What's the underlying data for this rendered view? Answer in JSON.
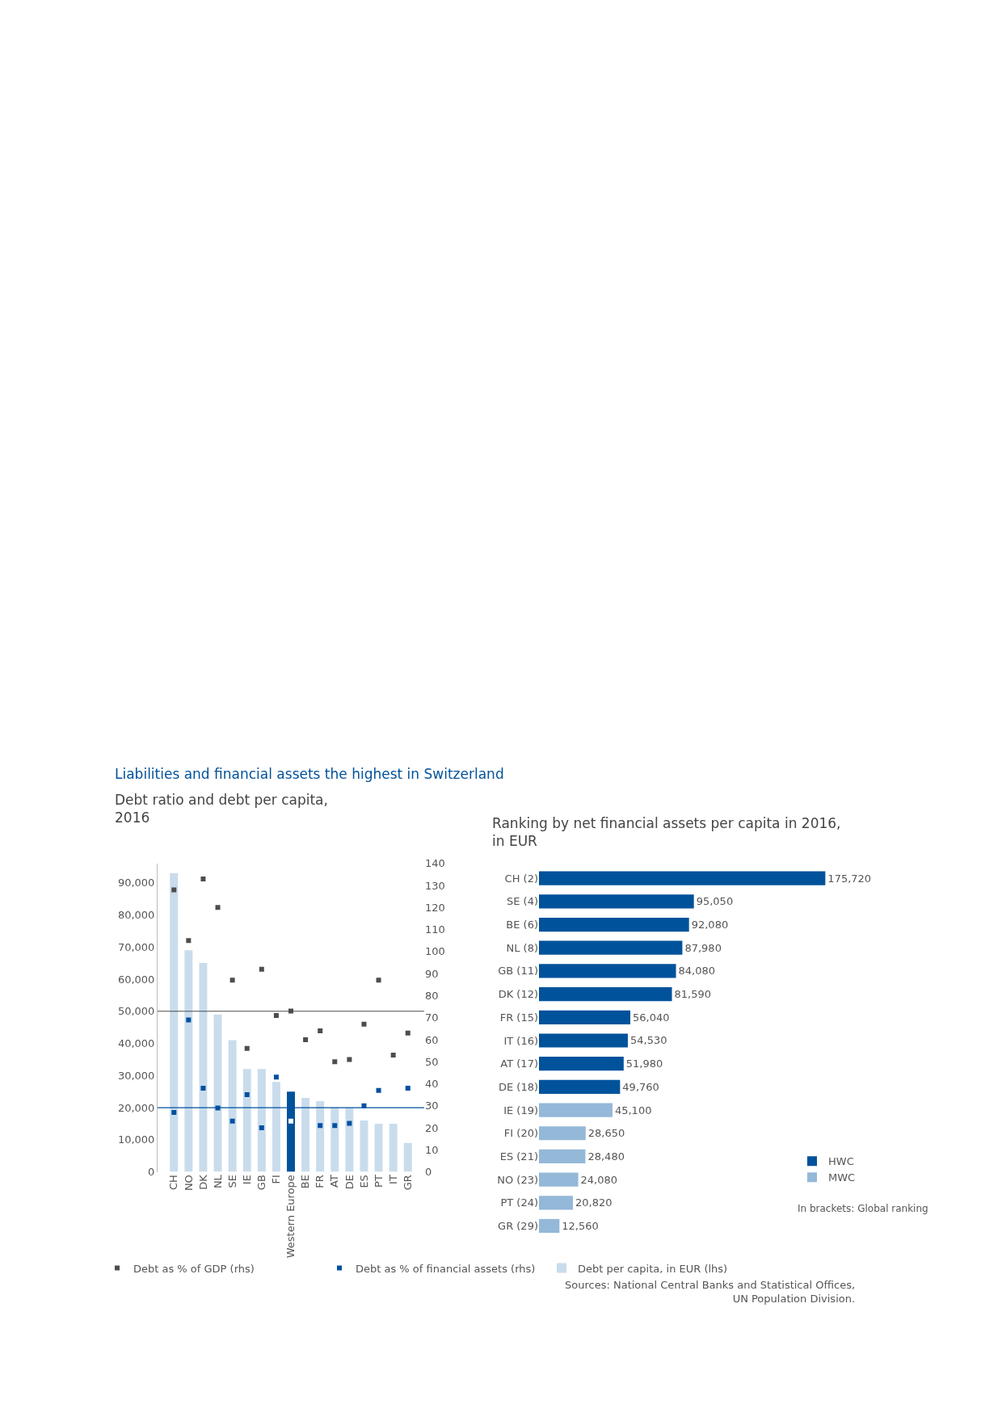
{
  "chart_data": [
    {
      "type": "bar",
      "title": "Liabilities and financial assets the highest in Switzerland",
      "subtitle": "Debt ratio and debt per capita, 2016",
      "categories": [
        "CH",
        "NO",
        "DK",
        "NL",
        "SE",
        "IE",
        "GB",
        "FI",
        "Western Europe",
        "BE",
        "FR",
        "AT",
        "DE",
        "ES",
        "PT",
        "IT",
        "GR"
      ],
      "series": [
        {
          "name": "Debt per capita, in EUR (lhs)",
          "type": "bar",
          "color": "#c9dcec",
          "colors": [
            "#c9dcec",
            "#c9dcec",
            "#c9dcec",
            "#c9dcec",
            "#c9dcec",
            "#c9dcec",
            "#c9dcec",
            "#c9dcec",
            "#00529b",
            "#c9dcec",
            "#c9dcec",
            "#c9dcec",
            "#c9dcec",
            "#c9dcec",
            "#c9dcec",
            "#c9dcec",
            "#c9dcec"
          ],
          "values": [
            93000,
            69000,
            65000,
            49000,
            41000,
            32000,
            32000,
            28000,
            25000,
            23000,
            22000,
            20000,
            20000,
            16000,
            15000,
            15000,
            9000
          ]
        },
        {
          "name": "Debt as % of GDP (rhs)",
          "type": "scatter",
          "axis": "y2",
          "color": "#4d4d4d",
          "values": [
            128,
            105,
            133,
            120,
            87,
            56,
            92,
            71,
            73,
            60,
            64,
            50,
            51,
            67,
            87,
            53,
            63
          ]
        },
        {
          "name": "Debt as % of financial assets (rhs)",
          "type": "scatter",
          "axis": "y2",
          "color": "#0050a0",
          "colors": [
            "#0050a0",
            "#0050a0",
            "#0050a0",
            "#0050a0",
            "#0050a0",
            "#0050a0",
            "#0050a0",
            "#0050a0",
            "#ffffff",
            "#0050a0",
            "#0050a0",
            "#0050a0",
            "#0050a0",
            "#0050a0",
            "#0050a0",
            "#0050a0",
            "#0050a0"
          ],
          "values": [
            27,
            69,
            38,
            29,
            23,
            35,
            20,
            43,
            23,
            null,
            21,
            21,
            22,
            30,
            37,
            null,
            38
          ]
        }
      ],
      "ylim": [
        0,
        96000
      ],
      "yticks": [
        {
          "value": 0,
          "label": "0"
        },
        {
          "value": 10000,
          "label": "10,000"
        },
        {
          "value": 20000,
          "label": "20,000"
        },
        {
          "value": 30000,
          "label": "30,000"
        },
        {
          "value": 40000,
          "label": "40,000"
        },
        {
          "value": 50000,
          "label": "50,000"
        },
        {
          "value": 60000,
          "label": "60,000"
        },
        {
          "value": 70000,
          "label": "70,000"
        },
        {
          "value": 80000,
          "label": "80,000"
        },
        {
          "value": 90000,
          "label": "90,000"
        }
      ],
      "y2lim": [
        0,
        140
      ],
      "y2ticks": [
        0,
        10,
        20,
        30,
        40,
        50,
        60,
        70,
        80,
        90,
        100,
        110,
        120,
        130,
        140
      ],
      "ref_lines": [
        {
          "axis": "y",
          "value": 50000,
          "color": "#4d4d4d"
        },
        {
          "axis": "y",
          "value": 20000,
          "color": "#0050a0"
        }
      ],
      "marker": "square",
      "legend": "bottom"
    },
    {
      "type": "bar",
      "orientation": "horizontal",
      "title": "Ranking by net financial assets per capita in 2016, in EUR",
      "categories": [
        "CH (2)",
        "SE (4)",
        "BE (6)",
        "NL (8)",
        "GB (11)",
        "DK (12)",
        "FR (15)",
        "IT (16)",
        "AT (17)",
        "DE (18)",
        "IE (19)",
        "FI (20)",
        "ES (21)",
        "NO (23)",
        "PT (24)",
        "GR (29)"
      ],
      "series": [
        {
          "name": "HWC",
          "color": "#00529b",
          "values": [
            175720,
            95050,
            92080,
            87980,
            84080,
            81590,
            56040,
            54530,
            51980,
            49760,
            null,
            null,
            null,
            null,
            null,
            null
          ],
          "value_labels": [
            "175,720",
            "95,050",
            "92,080",
            "87,980",
            "84,080",
            "81,590",
            "56,040",
            "54,530",
            "51,980",
            "49,760",
            null,
            null,
            null,
            null,
            null,
            null
          ]
        },
        {
          "name": "MWC",
          "color": "#94b8d8",
          "values": [
            null,
            null,
            null,
            null,
            null,
            null,
            null,
            null,
            null,
            null,
            45100,
            28650,
            28480,
            24080,
            20820,
            12560
          ],
          "value_labels": [
            null,
            null,
            null,
            null,
            null,
            null,
            null,
            null,
            null,
            null,
            "45,100",
            "28,650",
            "28,480",
            "24,080",
            "20,820",
            "12,560"
          ]
        }
      ],
      "tick_labels": "y",
      "legend": "bottom right",
      "annotations": [
        "In brackets: Global ranking",
        "Sources: National Central Banks and Statistical Offices,\nUN Population Division."
      ]
    }
  ]
}
